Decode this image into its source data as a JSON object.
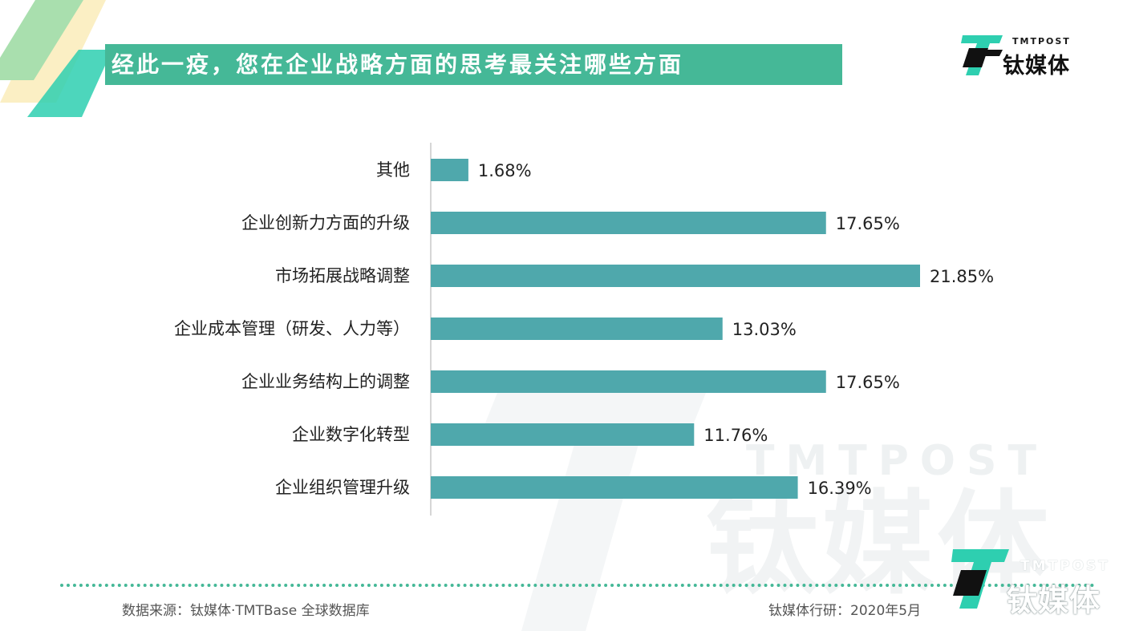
{
  "header": {
    "title": "经此一疫，您在企业战略方面的思考最关注哪些方面",
    "logo_en": "TMTPOST",
    "logo_cn": "钛媒体"
  },
  "colors": {
    "accent": "#45b897",
    "bar": "#4fa8ac",
    "deco_yellow": "#fbefc4",
    "deco_green": "#a9dfae",
    "deco_teal": "#2ecfb0",
    "text": "#222222"
  },
  "chart_data": {
    "type": "bar",
    "orientation": "horizontal",
    "categories": [
      "其他",
      "企业创新力方面的升级",
      "市场拓展战略调整",
      "企业成本管理（研发、人力等）",
      "企业业务结构上的调整",
      "企业数字化转型",
      "企业组织管理升级"
    ],
    "values": [
      1.68,
      17.65,
      21.85,
      13.03,
      17.65,
      11.76,
      16.39
    ],
    "data_labels": [
      "1.68%",
      "17.65%",
      "21.85%",
      "13.03%",
      "17.65%",
      "11.76%",
      "16.39%"
    ],
    "xlim": [
      0,
      21.85
    ],
    "grid": false,
    "legend": "none"
  },
  "watermark": {
    "en": "TMTPOST",
    "cn": "钛媒体"
  },
  "footer": {
    "source": "数据来源：钛媒体·TMTBase 全球数据库",
    "credit": "钛媒体行研：2020年5月",
    "logo_en": "TMTPOST",
    "logo_cn": "钛媒体"
  }
}
